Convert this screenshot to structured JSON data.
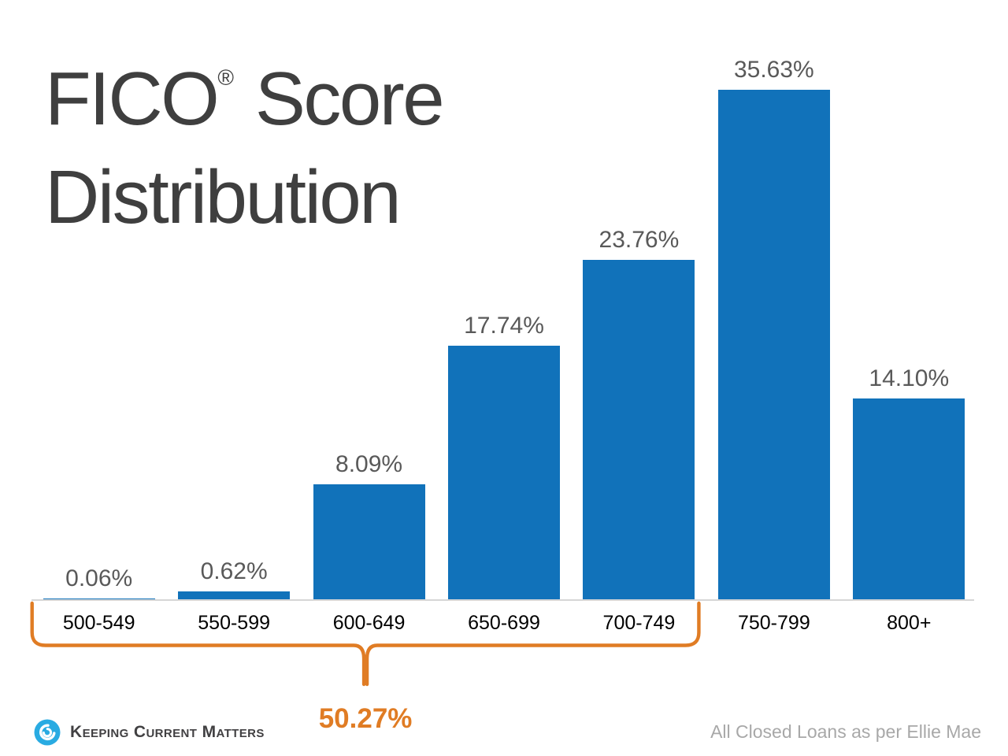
{
  "title": {
    "brand": "FICO",
    "registered": "®",
    "score_word": "Score",
    "line2": "Distribution"
  },
  "chart_data": {
    "type": "bar",
    "title": "FICO® Score Distribution",
    "categories": [
      "500-549",
      "550-599",
      "600-649",
      "650-699",
      "700-749",
      "750-799",
      "800+"
    ],
    "values": [
      0.06,
      0.62,
      8.09,
      17.74,
      23.76,
      35.63,
      14.1
    ],
    "value_labels": [
      "0.06%",
      "0.62%",
      "8.09%",
      "17.74%",
      "23.76%",
      "35.63%",
      "14.10%"
    ],
    "xlabel": "",
    "ylabel": "",
    "ylim": [
      0,
      40
    ],
    "grid": false,
    "legend": null,
    "bar_color": "#1172ba",
    "annotation": {
      "label": "50.27%",
      "span_from_category": "500-549",
      "span_to_category": "700-749",
      "color": "#e07c24"
    }
  },
  "footer": {
    "logo_text": "Keeping Current Matters",
    "source_note": "All Closed Loans as per Ellie Mae"
  },
  "colors": {
    "title_text": "#3f3f3f",
    "value_label": "#595959",
    "category_label": "#000000",
    "axis_line": "#d6d6d6",
    "bar_blue": "#1172ba",
    "bracket_orange": "#e07c24",
    "logo_blue": "#29abe2",
    "footnote_gray": "#a8a8a8"
  }
}
